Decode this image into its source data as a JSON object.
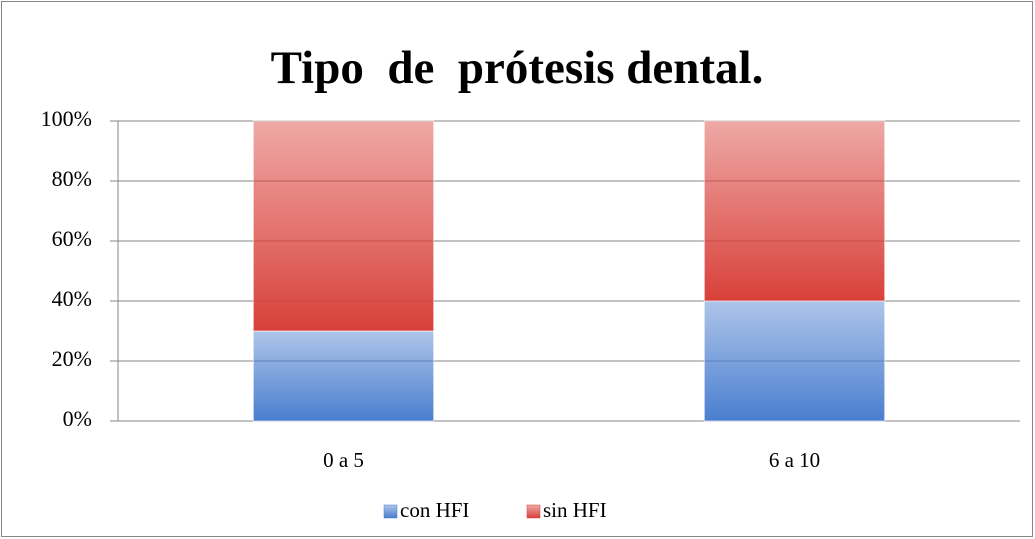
{
  "chart_data": {
    "type": "stacked_bar",
    "title": "Tipo  de  prótesis dental.",
    "categories": [
      "0 a 5",
      "6 a 10"
    ],
    "series": [
      {
        "name": "con HFI",
        "color": "#4a7ecf",
        "values": [
          30,
          40
        ]
      },
      {
        "name": "sin HFI",
        "color": "#d9403a",
        "values": [
          70,
          60
        ]
      }
    ],
    "ylim": [
      0,
      100
    ],
    "yticks": [
      {
        "value": 0,
        "label": "0%"
      },
      {
        "value": 20,
        "label": "20%"
      },
      {
        "value": 40,
        "label": "40%"
      },
      {
        "value": 60,
        "label": "60%"
      },
      {
        "value": 80,
        "label": "80%"
      },
      {
        "value": 100,
        "label": "100%"
      }
    ],
    "grid": true,
    "legend": "bottom"
  }
}
